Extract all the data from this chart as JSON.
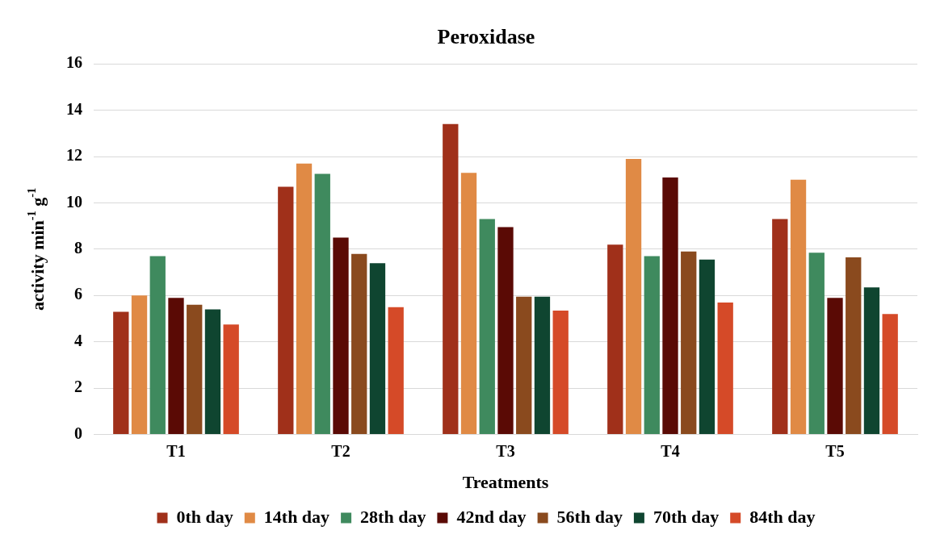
{
  "chart_data": {
    "type": "bar",
    "title": "Peroxidase",
    "xlabel": "Treatments",
    "ylabel": "activity min$^{-1}$ g$^{-1}$",
    "categories": [
      "T1",
      "T2",
      "T3",
      "T4",
      "T5"
    ],
    "series": [
      {
        "name": "0th day",
        "color": "#a0301a",
        "values": [
          5.3,
          10.7,
          13.4,
          8.2,
          9.3
        ]
      },
      {
        "name": "14th day",
        "color": "#e08a45",
        "values": [
          6.0,
          11.7,
          11.3,
          11.9,
          11.0
        ]
      },
      {
        "name": "28th day",
        "color": "#3f8a5e",
        "values": [
          7.7,
          11.25,
          9.3,
          7.7,
          7.85
        ]
      },
      {
        "name": "42nd day",
        "color": "#5a0a05",
        "values": [
          5.9,
          8.5,
          8.95,
          11.1,
          5.9
        ]
      },
      {
        "name": "56th day",
        "color": "#8a4a1e",
        "values": [
          5.6,
          7.8,
          5.95,
          7.9,
          7.65
        ]
      },
      {
        "name": "70th day",
        "color": "#0f4530",
        "values": [
          5.4,
          7.4,
          5.95,
          7.55,
          6.35
        ]
      },
      {
        "name": "84th day",
        "color": "#d54a28",
        "values": [
          4.75,
          5.5,
          5.35,
          5.7,
          5.2
        ]
      }
    ],
    "ylim": [
      0,
      16
    ],
    "yticks": [
      0,
      2,
      4,
      6,
      8,
      10,
      12,
      14,
      16
    ],
    "grid": "y",
    "legend": "bottom"
  }
}
